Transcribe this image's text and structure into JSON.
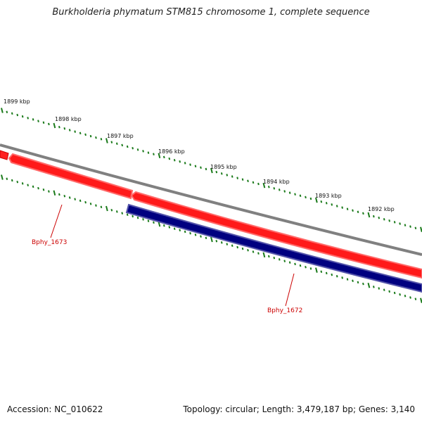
{
  "title": "Burkholderia phymatum STM815 chromosome 1, complete sequence",
  "footer": {
    "accession": "Accession: NC_010622",
    "summary": "Topology: circular; Length: 3,479,187 bp; Genes: 3,140"
  },
  "colors": {
    "forward_gene": "#ff0000",
    "reverse_gene": "#000080",
    "backbone": "#808080",
    "ticks": "#1a7a1a",
    "gene_label": "#cc0000"
  },
  "kbp_labels": [
    "1899 kbp",
    "1898 kbp",
    "1897 kbp",
    "1896 kbp",
    "1895 kbp",
    "1894 kbp",
    "1893 kbp",
    "1892 kbp"
  ],
  "genes": [
    {
      "label": "Bphy_1673",
      "strand": "forward"
    },
    {
      "label": "Bphy_1672",
      "strand": "reverse"
    }
  ]
}
